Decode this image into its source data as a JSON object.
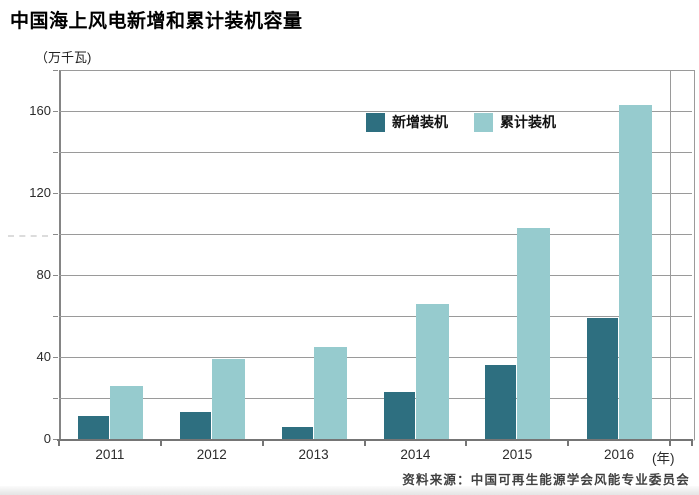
{
  "title": "中国海上风电新增和累计装机容量",
  "y_axis_unit_label": "（万千瓦)",
  "x_axis_unit_label": "(年)",
  "source_note": "资料来源：中国可再生能源学会风能专业委员会",
  "colors": {
    "new_installed": "#2e6f80",
    "cumulative_installed": "#96cbce",
    "gridline": "#9a9a9a",
    "axis": "#757575"
  },
  "y_axis_tick_labels": [
    "0",
    "40",
    "80",
    "120",
    "160"
  ],
  "chart_data": {
    "type": "bar",
    "title": "中国海上风电新增和累计装机容量",
    "ylabel": "万千瓦",
    "xlabel": "年",
    "categories": [
      "2011",
      "2012",
      "2013",
      "2014",
      "2015",
      "2016"
    ],
    "series": [
      {
        "name": "新增装机",
        "color": "#2e6f80",
        "values": [
          11,
          13,
          6,
          23,
          36,
          59
        ]
      },
      {
        "name": "累计装机",
        "color": "#96cbce",
        "values": [
          26,
          39,
          45,
          66,
          103,
          163
        ]
      }
    ],
    "ylim": [
      0,
      180
    ],
    "labeled_tick_interval": 40,
    "gridline_interval": 20,
    "grid": true,
    "legend_position": "top-center-inside"
  }
}
